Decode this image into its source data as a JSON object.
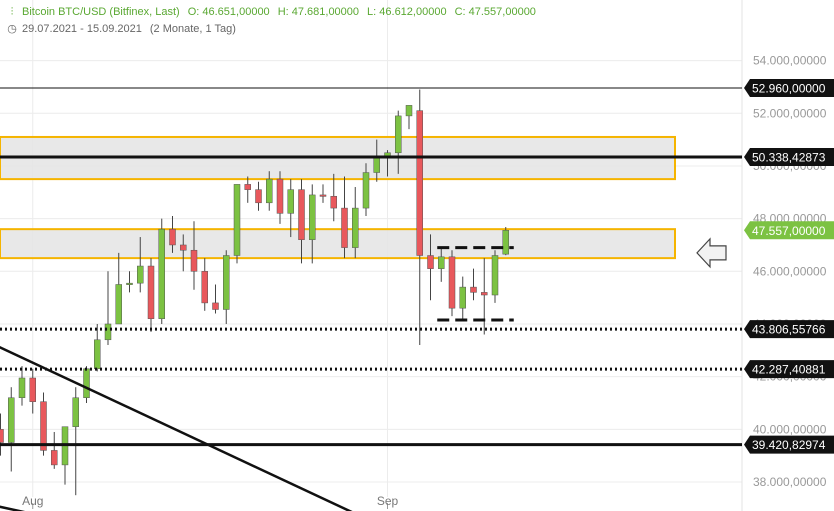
{
  "header": {
    "instrument": "Bitcoin BTC/USD (Bitfinex, Last)",
    "open": "O: 46.651,00000",
    "high": "H: 47.681,00000",
    "low": "L: 46.612,00000",
    "close": "C: 47.557,00000",
    "period": "29.07.2021 - 15.09.2021",
    "span": "(2 Monate, 1 Tag)"
  },
  "colors": {
    "up": "#7cc242",
    "down": "#e8585c",
    "zone": "#f5b400",
    "last": "#7cc242",
    "accent_header": "#5aa832"
  },
  "chart_data": {
    "type": "candlestick",
    "ylim": [
      36900,
      56300
    ],
    "y_ticks": [
      38000,
      40000,
      42000,
      44000,
      46000,
      48000,
      50000,
      52000,
      54000
    ],
    "y_tick_labels": [
      "38.000,00000",
      "40.000,00000",
      "42.000,00000",
      "44.000,00000",
      "46.000,00000",
      "48.000,00000",
      "50.000,00000",
      "52.000,00000",
      "54.000,00000"
    ],
    "x_labels": [
      {
        "label": "Aug",
        "index": 3
      },
      {
        "label": "Sep",
        "index": 36
      }
    ],
    "candles": [
      {
        "o": 40000,
        "h": 40600,
        "l": 39000,
        "c": 39500
      },
      {
        "o": 39500,
        "h": 41600,
        "l": 38400,
        "c": 41200
      },
      {
        "o": 41200,
        "h": 42400,
        "l": 40900,
        "c": 41950
      },
      {
        "o": 41950,
        "h": 42300,
        "l": 40600,
        "c": 41050
      },
      {
        "o": 41050,
        "h": 41400,
        "l": 39000,
        "c": 39200
      },
      {
        "o": 39200,
        "h": 39900,
        "l": 38500,
        "c": 38650
      },
      {
        "o": 38650,
        "h": 40000,
        "l": 37900,
        "c": 40100
      },
      {
        "o": 40100,
        "h": 41600,
        "l": 37500,
        "c": 41200
      },
      {
        "o": 41200,
        "h": 42400,
        "l": 41000,
        "c": 42300
      },
      {
        "o": 42300,
        "h": 44000,
        "l": 42200,
        "c": 43400
      },
      {
        "o": 43400,
        "h": 46000,
        "l": 43200,
        "c": 44000
      },
      {
        "o": 44000,
        "h": 46700,
        "l": 44000,
        "c": 45500
      },
      {
        "o": 45500,
        "h": 46000,
        "l": 45200,
        "c": 45550
      },
      {
        "o": 45550,
        "h": 47300,
        "l": 45200,
        "c": 46200
      },
      {
        "o": 46200,
        "h": 46500,
        "l": 43700,
        "c": 44200
      },
      {
        "o": 44200,
        "h": 48000,
        "l": 44000,
        "c": 47600
      },
      {
        "o": 47600,
        "h": 48100,
        "l": 46700,
        "c": 47000
      },
      {
        "o": 47000,
        "h": 47400,
        "l": 46000,
        "c": 46800
      },
      {
        "o": 46800,
        "h": 47900,
        "l": 45300,
        "c": 46000
      },
      {
        "o": 46000,
        "h": 46500,
        "l": 44500,
        "c": 44800
      },
      {
        "o": 44800,
        "h": 45500,
        "l": 44400,
        "c": 44550
      },
      {
        "o": 44550,
        "h": 46800,
        "l": 44000,
        "c": 46600
      },
      {
        "o": 46600,
        "h": 49300,
        "l": 46300,
        "c": 49300
      },
      {
        "o": 49300,
        "h": 49600,
        "l": 48600,
        "c": 49100
      },
      {
        "o": 49100,
        "h": 49400,
        "l": 48300,
        "c": 48600
      },
      {
        "o": 48600,
        "h": 49800,
        "l": 48300,
        "c": 49500
      },
      {
        "o": 49500,
        "h": 49800,
        "l": 47800,
        "c": 48200
      },
      {
        "o": 48200,
        "h": 49500,
        "l": 47300,
        "c": 49100
      },
      {
        "o": 49100,
        "h": 49500,
        "l": 46300,
        "c": 47200
      },
      {
        "o": 47200,
        "h": 49300,
        "l": 46300,
        "c": 48900
      },
      {
        "o": 48900,
        "h": 49300,
        "l": 48600,
        "c": 48850
      },
      {
        "o": 48850,
        "h": 49700,
        "l": 47900,
        "c": 48400
      },
      {
        "o": 48400,
        "h": 49600,
        "l": 46500,
        "c": 46900
      },
      {
        "o": 46900,
        "h": 49200,
        "l": 46500,
        "c": 48400
      },
      {
        "o": 48400,
        "h": 50100,
        "l": 48100,
        "c": 49750
      },
      {
        "o": 49750,
        "h": 51000,
        "l": 49400,
        "c": 50300
      },
      {
        "o": 50300,
        "h": 50600,
        "l": 49600,
        "c": 50500
      },
      {
        "o": 50500,
        "h": 52100,
        "l": 49700,
        "c": 51900
      },
      {
        "o": 51900,
        "h": 52300,
        "l": 51400,
        "c": 52300
      },
      {
        "o": 52100,
        "h": 52900,
        "l": 43200,
        "c": 46600
      },
      {
        "o": 46600,
        "h": 47400,
        "l": 44900,
        "c": 46100
      },
      {
        "o": 46100,
        "h": 46900,
        "l": 45600,
        "c": 46550
      },
      {
        "o": 46550,
        "h": 46800,
        "l": 44300,
        "c": 44600
      },
      {
        "o": 44600,
        "h": 45800,
        "l": 44100,
        "c": 45400
      },
      {
        "o": 45400,
        "h": 46100,
        "l": 44900,
        "c": 45200
      },
      {
        "o": 45200,
        "h": 46500,
        "l": 43600,
        "c": 45100
      },
      {
        "o": 45100,
        "h": 46800,
        "l": 44800,
        "c": 46600
      },
      {
        "o": 46651,
        "h": 47681,
        "l": 46612,
        "c": 47557
      }
    ],
    "horizontal_lines": [
      {
        "value": 52960.0,
        "label": "52.960,00000",
        "style": "solid-thin"
      },
      {
        "value": 50338.42873,
        "label": "50.338,42873",
        "style": "solid-thick"
      },
      {
        "value": 43806.55766,
        "label": "43.806,55766",
        "style": "dotted"
      },
      {
        "value": 42287.40881,
        "label": "42.287,40881",
        "style": "dotted"
      },
      {
        "value": 39420.82974,
        "label": "39.420,82974",
        "style": "solid-thick"
      }
    ],
    "last_price": {
      "value": 47557.0,
      "label": "47.557,00000"
    },
    "zones": [
      {
        "low": 49500,
        "high": 51100
      },
      {
        "low": 46500,
        "high": 47600
      }
    ],
    "dashed_segments": [
      {
        "value": 46900,
        "from_index": 41,
        "to_index": 47
      },
      {
        "value": 44150,
        "from_index": 41,
        "to_index": 47
      }
    ],
    "trendline": {
      "from": {
        "index": -0.5,
        "value": 43200
      },
      "to": {
        "index": 33,
        "value": 36800
      }
    },
    "trendline2": {
      "from": {
        "index": -0.5,
        "value": 37100
      },
      "to": {
        "index": 4,
        "value": 36700
      }
    },
    "arrow": {
      "direction": "left",
      "value": 46700
    }
  }
}
